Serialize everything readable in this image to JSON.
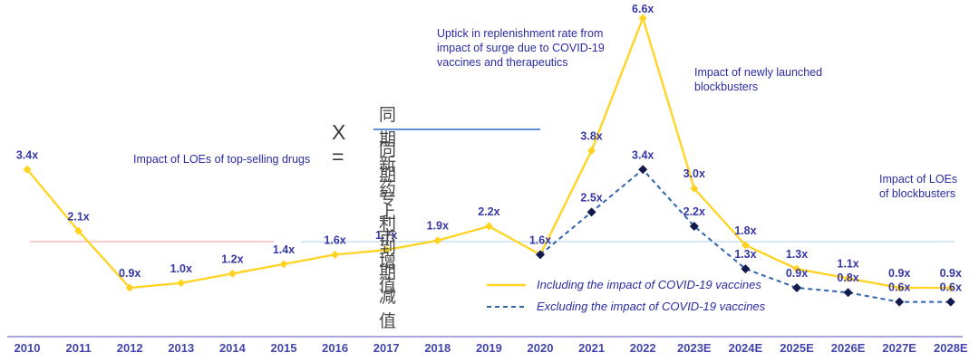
{
  "chart_data": {
    "type": "line",
    "title": "",
    "x": [
      "2010",
      "2011",
      "2012",
      "2013",
      "2014",
      "2015",
      "2016",
      "2017",
      "2018",
      "2019",
      "2020",
      "2021",
      "2022",
      "2023E",
      "2024E",
      "2025E",
      "2026E",
      "2027E",
      "2028E"
    ],
    "series": [
      {
        "name": "Including the impact of COVID-19 vaccines",
        "style": "solid",
        "color": "#FFD320",
        "marker_color": "#FFD320",
        "start_index": 0,
        "skip_first_label": false,
        "values": [
          3.4,
          2.1,
          0.9,
          1.0,
          1.2,
          1.4,
          1.6,
          1.7,
          1.9,
          2.2,
          1.6,
          3.8,
          6.6,
          3.0,
          1.8,
          1.3,
          1.1,
          0.9,
          0.9
        ]
      },
      {
        "name": "Excluding the impact of COVID-19 vaccines",
        "style": "dashed",
        "color": "#2E64AD",
        "marker_color": "#121A4E",
        "start_index": 10,
        "skip_first_label": true,
        "values": [
          1.6,
          2.5,
          3.4,
          2.2,
          1.3,
          0.9,
          0.8,
          0.6,
          0.6
        ]
      }
    ],
    "label_suffix": "x",
    "ylim": [
      0,
      7
    ],
    "grid": false,
    "legend_position": "bottom-center",
    "baseline_segments": [
      {
        "color": "#F5BCBA"
      },
      {
        "color": "#C9DFF2"
      }
    ]
  },
  "annotations": {
    "loe_top_selling": "Impact of LOEs of top-selling drugs",
    "uptick": [
      "Uptick in replenishment rate from",
      "impact of surge due to COVID-19",
      "vaccines and therapeutics"
    ],
    "newly_launched": [
      "Impact of newly launched",
      "blockbusters"
    ],
    "loe_blockbusters": [
      "Impact of LOEs",
      "of blockbusters"
    ]
  },
  "formula": {
    "lhs": "X =",
    "numerator": "同期新药上市增值",
    "denominator": "同期专利到期减值"
  },
  "colors": {
    "data_label": "#3737A6",
    "year_label": "#4444AE",
    "axis_line": "#8C8CD4",
    "annotation_text": "#2B2BA6",
    "legend_text": "#2B2BA6",
    "formula_text": "#4a4a4a",
    "fraction_line": "#5E8FD9",
    "baseline_pink": "#F5BCBA",
    "baseline_lightblue": "#C9DFF2"
  }
}
